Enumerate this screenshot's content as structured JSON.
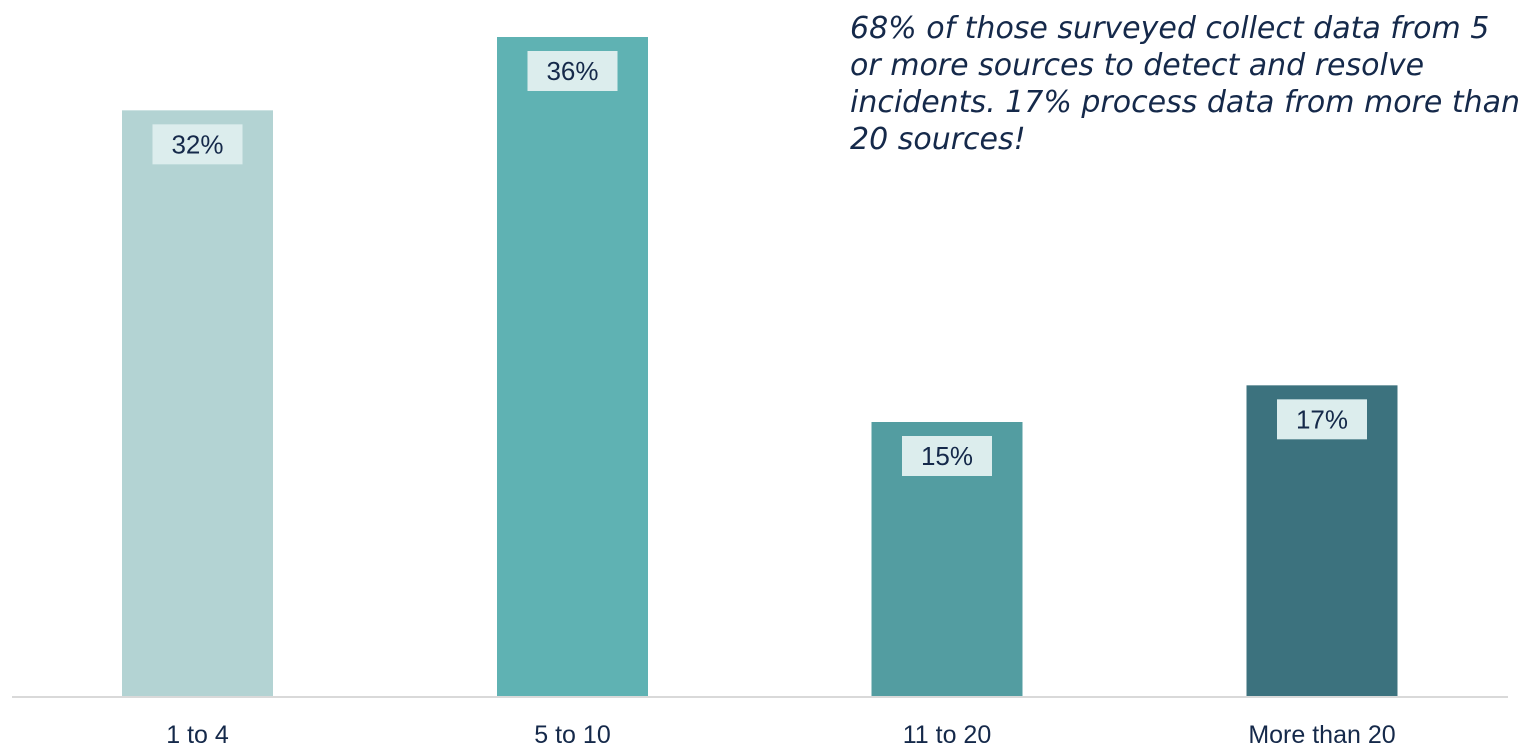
{
  "chart_data": {
    "type": "bar",
    "categories": [
      "1 to 4",
      "5 to 10",
      "11 to 20",
      "More than 20"
    ],
    "values": [
      32,
      36,
      15,
      17
    ],
    "value_labels": [
      "32%",
      "36%",
      "15%",
      "17%"
    ],
    "ylim": [
      0,
      36
    ],
    "grid": false,
    "legend": "none",
    "colors": [
      "#b3d3d3",
      "#5fb2b3",
      "#539da1",
      "#3c727e"
    ],
    "label_box_color": "#dceded",
    "label_text_color": "#15294a",
    "tick_text_color": "#15294a",
    "axis_color": "#d9d9d9"
  },
  "annotation": {
    "lines": [
      "68% of those surveyed collect data from 5",
      "or more sources to detect and resolve",
      "incidents. 17% process data from more than",
      "20 sources!"
    ]
  }
}
